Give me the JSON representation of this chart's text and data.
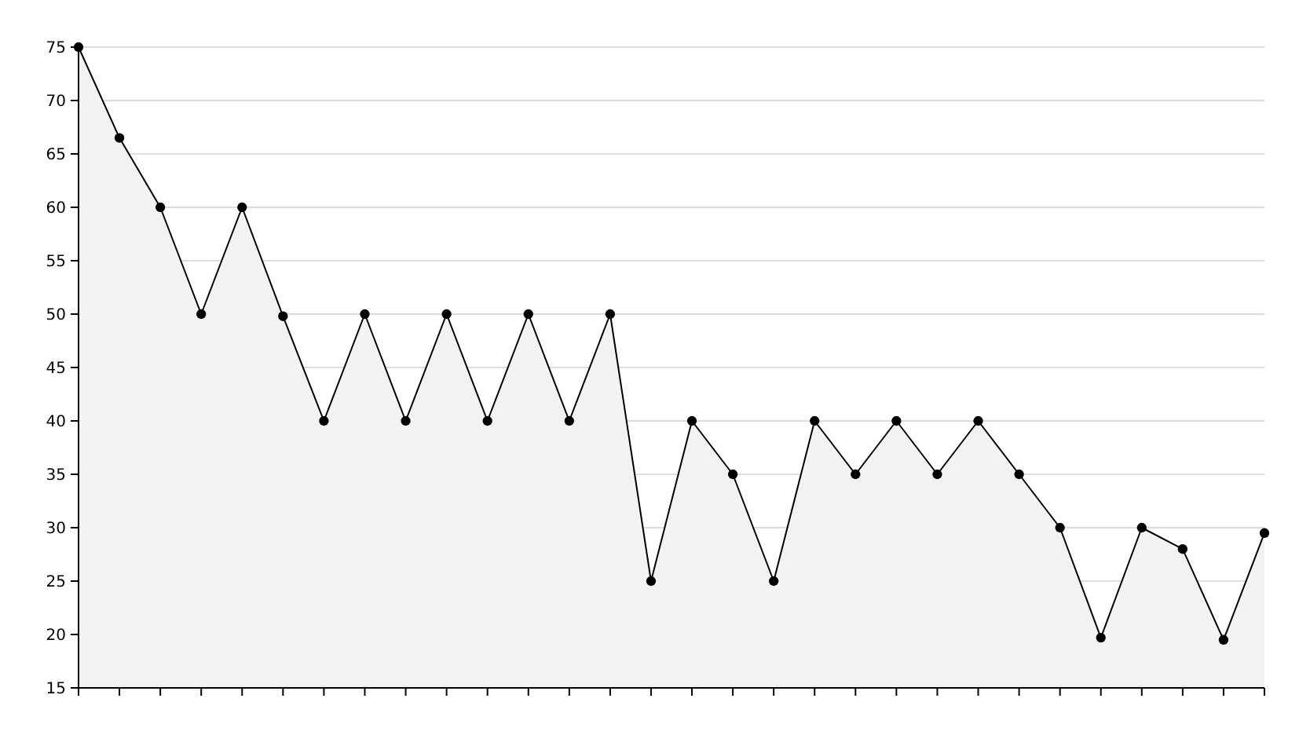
{
  "chart_data": {
    "type": "area",
    "categories": [
      null,
      null,
      null,
      null,
      null,
      null,
      null,
      null,
      null,
      null,
      null,
      null,
      null,
      null,
      null,
      null,
      null,
      null,
      null,
      null,
      null,
      null,
      null,
      null,
      null,
      null,
      null,
      null,
      null,
      null
    ],
    "series": [
      {
        "color": "#000000",
        "values": [
          75,
          66.5,
          60,
          50,
          60,
          49.8,
          40,
          50,
          40,
          50,
          40,
          50,
          40,
          50,
          25,
          40,
          35,
          25,
          40,
          35,
          40,
          35,
          40,
          35,
          30,
          19.7,
          30,
          28,
          19.5,
          29.5
        ]
      }
    ],
    "ylim": [
      15,
      75
    ],
    "yticks": [
      15,
      20,
      25,
      30,
      35,
      40,
      45,
      50,
      55,
      60,
      65,
      70,
      75
    ],
    "grid": "y",
    "marker": "circle",
    "line_style": "solid"
  }
}
